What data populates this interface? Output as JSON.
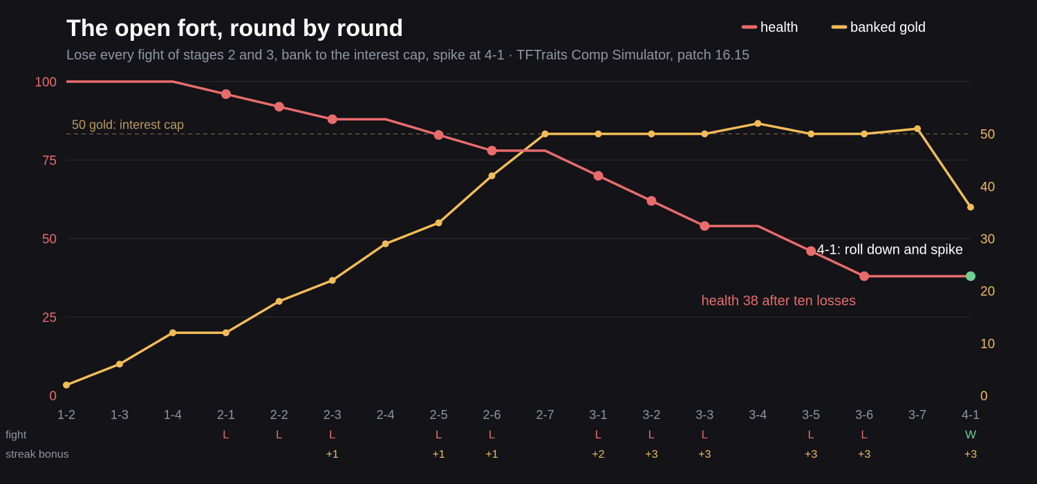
{
  "chart_data": {
    "type": "line",
    "title": "The open fort, round by round",
    "subtitle": "Lose every fight of stages 2 and 3, bank to the interest cap, spike at 4-1 · TFTraits Comp Simulator, patch 16.15",
    "categories": [
      "1-2",
      "1-3",
      "1-4",
      "2-1",
      "2-2",
      "2-3",
      "2-4",
      "2-5",
      "2-6",
      "2-7",
      "3-1",
      "3-2",
      "3-3",
      "3-4",
      "3-5",
      "3-6",
      "3-7",
      "4-1"
    ],
    "series": [
      {
        "name": "health",
        "axis": "left",
        "color": "#e86c6c",
        "values": [
          100,
          100,
          100,
          96,
          92,
          88,
          88,
          83,
          78,
          78,
          70,
          62,
          54,
          54,
          46,
          38,
          38,
          38
        ],
        "markers": [
          false,
          false,
          false,
          true,
          true,
          true,
          false,
          true,
          true,
          false,
          true,
          true,
          true,
          false,
          true,
          true,
          false,
          true
        ]
      },
      {
        "name": "banked gold",
        "axis": "right",
        "color": "#f2bc57",
        "values": [
          2,
          6,
          12,
          12,
          18,
          22,
          29,
          33,
          42,
          50,
          50,
          50,
          50,
          52,
          50,
          50,
          51,
          36
        ]
      }
    ],
    "y_left": {
      "range": [
        0,
        100
      ],
      "ticks": [
        0,
        25,
        50,
        75,
        100
      ],
      "color": "#e86c6c"
    },
    "y_right": {
      "range": [
        0,
        60
      ],
      "ticks": [
        0,
        10,
        20,
        30,
        40,
        50
      ],
      "color": "#f2bc57"
    },
    "grid": true,
    "legend_position": "top-right",
    "reference_line": {
      "axis": "right",
      "value": 50,
      "label": "50 gold: interest cap"
    },
    "annotations": [
      {
        "text": "4-1: roll down and spike",
        "category": "4-1",
        "color": "#ffffff"
      },
      {
        "text": "health 38 after ten losses",
        "category": "3-6",
        "color": "#e86c6c"
      }
    ],
    "highlight_point": {
      "series": "health",
      "category": "4-1",
      "color": "#6fd08f"
    },
    "rows": {
      "fight_label": "fight",
      "streak_label": "streak bonus",
      "fight": [
        "",
        "",
        "",
        "L",
        "L",
        "L",
        "",
        "L",
        "L",
        "",
        "L",
        "L",
        "L",
        "",
        "L",
        "L",
        "",
        "W"
      ],
      "streak_bonus": [
        "",
        "",
        "",
        "",
        "",
        "+1",
        "",
        "+1",
        "+1",
        "",
        "+2",
        "+3",
        "+3",
        "",
        "+3",
        "+3",
        "",
        "+3"
      ]
    }
  }
}
